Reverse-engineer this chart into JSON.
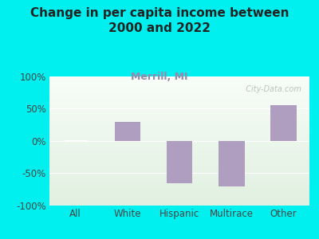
{
  "title": "Change in per capita income between\n2000 and 2022",
  "subtitle": "Merrill, MI",
  "categories": [
    "All",
    "White",
    "Hispanic",
    "Multirace",
    "Other"
  ],
  "values": [
    0,
    30,
    -65,
    -70,
    55
  ],
  "bar_color": "#b09ec0",
  "line_color": "#ffffff",
  "background_color": "#00f0f0",
  "ylim": [
    -100,
    100
  ],
  "yticks": [
    -100,
    -50,
    0,
    50,
    100
  ],
  "ytick_labels": [
    "-100%",
    "-50%",
    "0%",
    "50%",
    "100%"
  ],
  "title_fontsize": 11,
  "subtitle_fontsize": 9,
  "tick_fontsize": 8.5,
  "watermark": "  City-Data.com",
  "subtitle_color": "#9988aa"
}
